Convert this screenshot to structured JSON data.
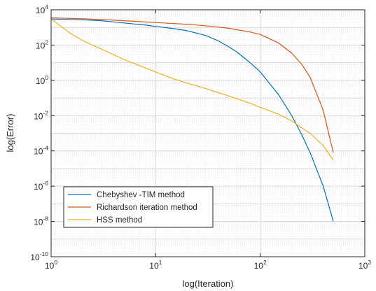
{
  "chart_data": {
    "type": "line",
    "xscale": "log",
    "yscale": "log",
    "xlim": [
      1,
      1000
    ],
    "ylim": [
      1e-10,
      10000
    ],
    "xlabel": "log(Iteration)",
    "ylabel": "log(Error)",
    "grid": true,
    "minor_grid": true,
    "legend_position": "bottom-left",
    "x_ticks": [
      {
        "value": 1,
        "base": "10",
        "exp": "0"
      },
      {
        "value": 10,
        "base": "10",
        "exp": "1"
      },
      {
        "value": 100,
        "base": "10",
        "exp": "2"
      },
      {
        "value": 1000,
        "base": "10",
        "exp": "3"
      }
    ],
    "y_ticks": [
      {
        "value": 1e-10,
        "base": "10",
        "exp": "-10"
      },
      {
        "value": 1e-08,
        "base": "10",
        "exp": "-8"
      },
      {
        "value": 1e-06,
        "base": "10",
        "exp": "-6"
      },
      {
        "value": 0.0001,
        "base": "10",
        "exp": "-4"
      },
      {
        "value": 0.01,
        "base": "10",
        "exp": "-2"
      },
      {
        "value": 1,
        "base": "10",
        "exp": "0"
      },
      {
        "value": 100,
        "base": "10",
        "exp": "2"
      },
      {
        "value": 10000,
        "base": "10",
        "exp": "4"
      }
    ],
    "series": [
      {
        "name": "Chebyshev -TIM method",
        "color": "#0072BD",
        "x": [
          1,
          2,
          3,
          5,
          8,
          10,
          15,
          20,
          30,
          40,
          50,
          60,
          80,
          100,
          150,
          200,
          250,
          300,
          400,
          500
        ],
        "y": [
          3000,
          2700,
          2400,
          1800,
          1350,
          1150,
          850,
          650,
          350,
          170,
          80,
          40,
          10,
          3,
          0.15,
          0.01,
          0.0008,
          8e-05,
          1e-06,
          1e-08
        ]
      },
      {
        "name": "Richardson iteration method",
        "color": "#D95319",
        "x": [
          1,
          2,
          3,
          5,
          8,
          10,
          15,
          20,
          30,
          50,
          80,
          100,
          150,
          200,
          250,
          300,
          400,
          500
        ],
        "y": [
          3500,
          3100,
          2800,
          2400,
          2050,
          1900,
          1650,
          1500,
          1250,
          900,
          550,
          400,
          130,
          35,
          8,
          1.5,
          0.02,
          8e-05
        ]
      },
      {
        "name": "HSS method",
        "color": "#EDB120",
        "x": [
          1,
          1.5,
          2,
          3,
          5,
          8,
          10,
          15,
          20,
          30,
          40,
          50,
          60,
          80,
          100,
          150,
          200,
          250,
          300,
          400,
          500
        ],
        "y": [
          3000,
          500,
          180,
          60,
          15,
          5,
          3,
          1.2,
          0.7,
          0.35,
          0.2,
          0.13,
          0.09,
          0.05,
          0.03,
          0.012,
          0.005,
          0.002,
          0.001,
          0.0002,
          3e-05
        ]
      }
    ]
  }
}
